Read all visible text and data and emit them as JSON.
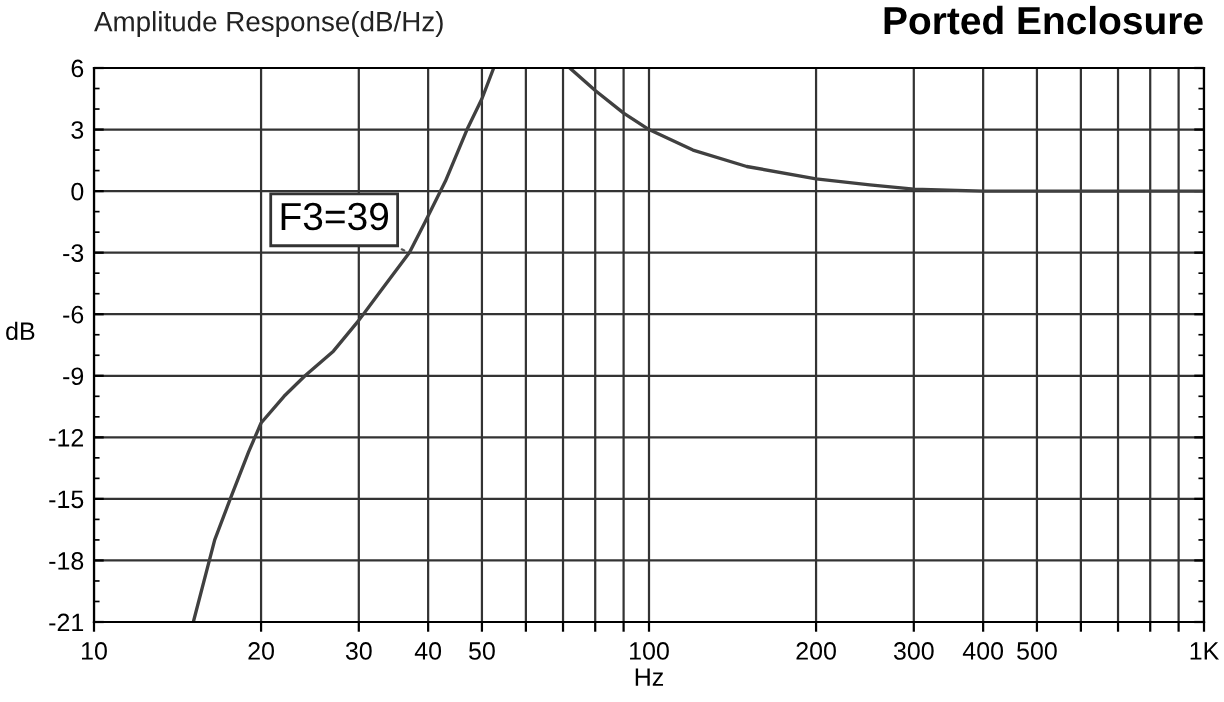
{
  "chart_data": {
    "type": "line",
    "title": "Ported Enclosure",
    "subtitle": "Amplitude Response(dB/Hz)",
    "xlabel": "Hz",
    "ylabel": "dB",
    "log": "x",
    "grid": true,
    "marker": "none",
    "line_style": "solid",
    "xlim": [
      10,
      1000
    ],
    "ylim": [
      -21,
      6
    ],
    "xticks": [
      10,
      20,
      30,
      40,
      50,
      {
        "value": 60,
        "label": null
      },
      {
        "value": 70,
        "label": null
      },
      {
        "value": 80,
        "label": null
      },
      {
        "value": 90,
        "label": null
      },
      100,
      200,
      300,
      400,
      500,
      {
        "value": 600,
        "label": null
      },
      {
        "value": 700,
        "label": null
      },
      {
        "value": 800,
        "label": null
      },
      {
        "value": 900,
        "label": null
      },
      {
        "value": 1000,
        "label": "1K"
      }
    ],
    "yticks": [
      -21,
      -18,
      -15,
      -12,
      -9,
      -6,
      -3,
      0,
      3,
      6
    ],
    "series": [
      {
        "color": "#404040",
        "x": [
          15.1,
          16.5,
          17.6,
          19,
          20,
          22,
          24,
          27,
          30,
          33,
          37,
          39.5,
          43,
          47,
          50,
          52.5,
          60,
          72,
          80,
          90,
          100,
          120,
          150,
          200,
          250,
          300,
          400,
          500,
          700,
          1000
        ],
        "values": [
          -21,
          -17,
          -15,
          -12.7,
          -11.3,
          -10,
          -9,
          -7.8,
          -6.3,
          -4.8,
          -3,
          -1.5,
          0.5,
          3,
          4.5,
          6,
          null,
          6,
          4.9,
          3.8,
          3,
          2,
          1.2,
          0.6,
          0.3,
          0.1,
          0,
          0,
          0,
          0
        ]
      }
    ],
    "annotations": [
      {
        "text": "F3=39",
        "x": 37,
        "y": -3
      }
    ]
  }
}
